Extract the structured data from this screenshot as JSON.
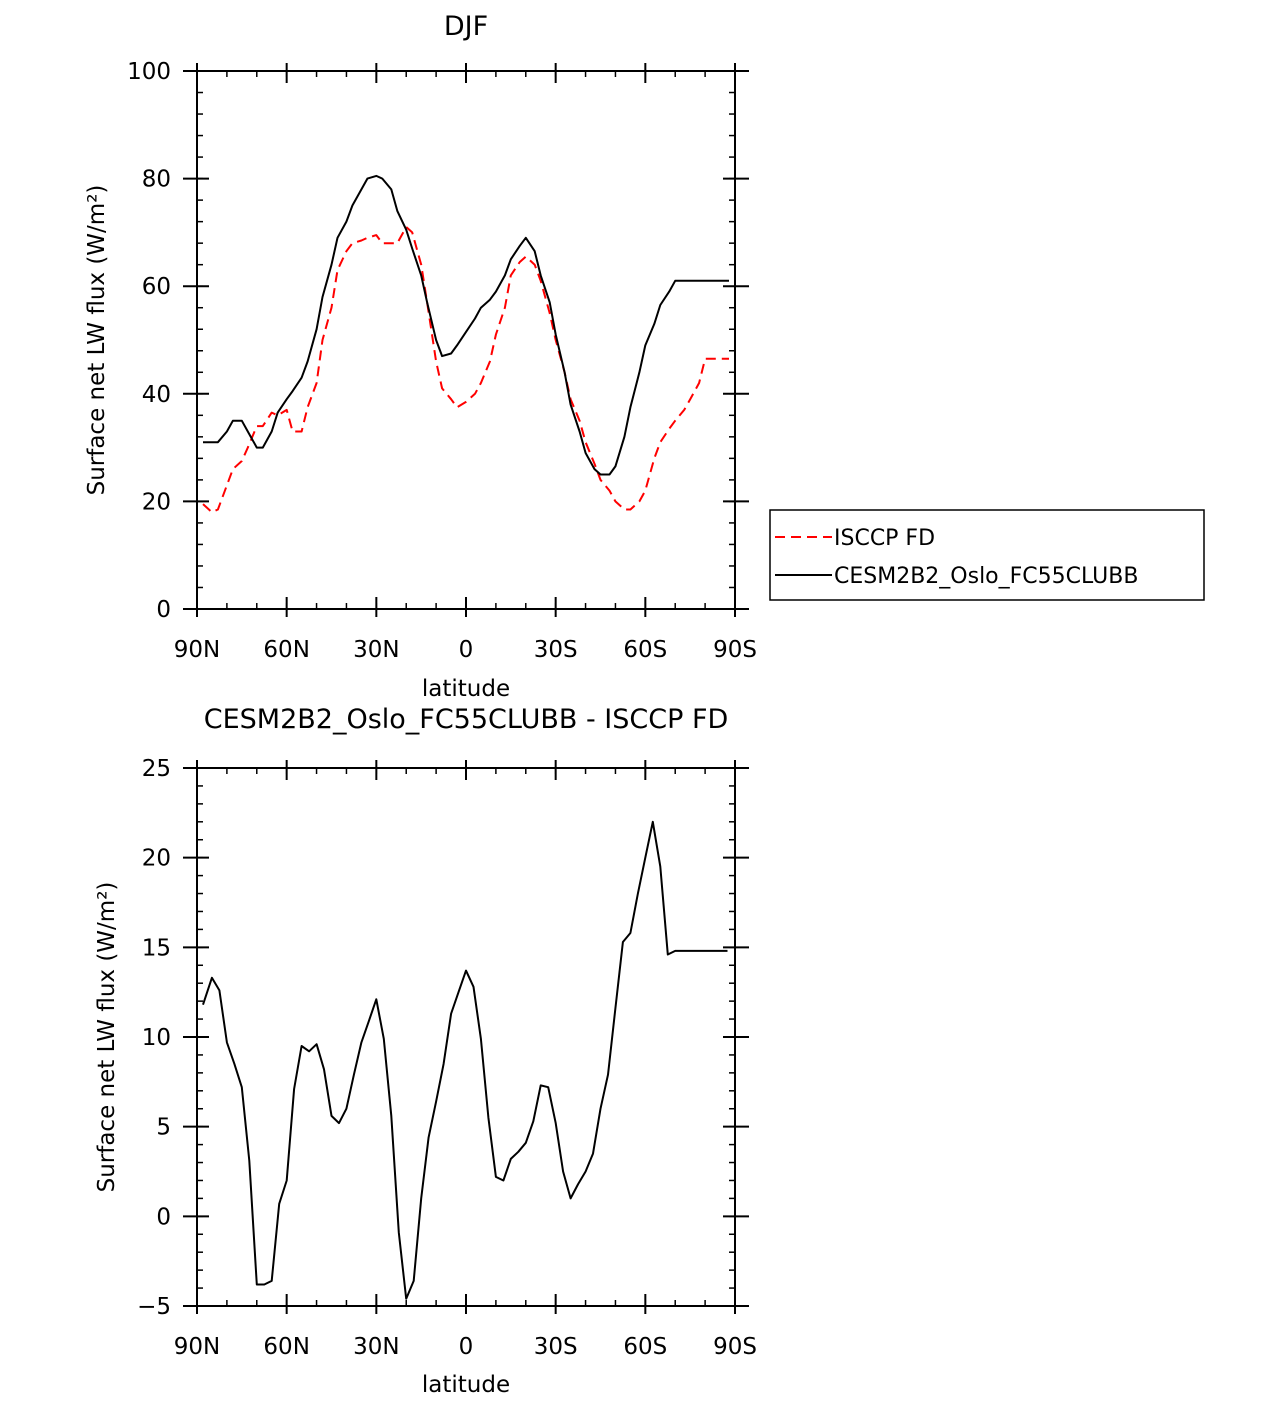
{
  "chart_data": [
    {
      "type": "line",
      "title": "DJF",
      "xlabel": "latitude",
      "ylabel": "Surface net LW flux (W/m²)",
      "xlim": [
        90,
        -90
      ],
      "ylim": [
        0,
        100
      ],
      "xticks": [
        90,
        60,
        30,
        0,
        -30,
        -60,
        -90
      ],
      "xtick_labels": [
        "90N",
        "60N",
        "30N",
        "0",
        "30S",
        "60S",
        "90S"
      ],
      "yticks": [
        0,
        20,
        40,
        60,
        80,
        100
      ],
      "ytick_labels": [
        "0",
        "20",
        "40",
        "60",
        "80",
        "100"
      ],
      "legend": {
        "placement": "right",
        "entries": [
          "ISCCP FD",
          "CESM2B2_Oslo_FC55CLUBB"
        ]
      },
      "series": [
        {
          "name": "ISCCP FD",
          "color": "#ff0000",
          "dash": "dashed",
          "x": [
            88,
            85,
            83,
            80,
            78,
            75,
            73,
            70,
            68,
            65,
            63,
            60,
            58,
            55,
            53,
            50,
            48,
            45,
            43,
            40,
            38,
            35,
            33,
            30,
            28,
            25,
            23,
            20,
            18,
            15,
            13,
            10,
            8,
            5,
            3,
            0,
            -3,
            -5,
            -8,
            -10,
            -13,
            -15,
            -18,
            -20,
            -23,
            -25,
            -28,
            -30,
            -33,
            -35,
            -38,
            -40,
            -43,
            -45,
            -48,
            -50,
            -53,
            -55,
            -58,
            -60,
            -63,
            -65,
            -68,
            -70,
            -73,
            -75,
            -78,
            -80,
            -83,
            -85,
            -88
          ],
          "values": [
            19.5,
            18,
            18.5,
            23,
            26,
            27.5,
            30,
            34,
            34,
            36.5,
            36,
            37,
            33,
            33,
            37.5,
            42,
            50,
            56,
            63,
            66.5,
            68,
            68.5,
            69,
            69.5,
            68,
            68,
            68,
            71,
            70,
            64,
            57,
            46,
            41,
            39,
            37.5,
            38.5,
            40,
            42,
            46,
            51,
            56,
            62,
            64.5,
            65.5,
            64,
            61,
            55,
            50,
            44,
            39,
            35,
            31,
            27,
            24,
            22,
            20,
            18.5,
            18.5,
            20,
            22,
            28,
            31,
            33.5,
            35,
            37,
            39,
            42,
            46.5,
            46.5,
            46.5,
            46.5
          ]
        },
        {
          "name": "CESM2B2_Oslo_FC55CLUBB",
          "color": "#000000",
          "dash": "solid",
          "x": [
            88,
            85,
            83,
            80,
            78,
            75,
            73,
            70,
            68,
            65,
            63,
            60,
            58,
            55,
            53,
            50,
            48,
            45,
            43,
            40,
            38,
            35,
            33,
            30,
            28,
            25,
            23,
            20,
            18,
            15,
            13,
            10,
            8,
            5,
            3,
            0,
            -3,
            -5,
            -8,
            -10,
            -13,
            -15,
            -18,
            -20,
            -23,
            -25,
            -28,
            -30,
            -33,
            -35,
            -38,
            -40,
            -43,
            -45,
            -48,
            -50,
            -53,
            -55,
            -58,
            -60,
            -63,
            -65,
            -68,
            -70,
            -73,
            -75,
            -78,
            -80,
            -83,
            -85,
            -88
          ],
          "values": [
            31,
            31,
            31,
            33,
            35,
            35,
            33,
            30,
            30,
            33,
            36.5,
            39,
            40.5,
            43,
            46,
            52,
            58,
            64,
            69,
            72,
            75,
            78,
            80,
            80.5,
            80,
            78,
            74,
            70.5,
            67,
            62,
            57,
            50,
            47,
            47.5,
            49,
            51.5,
            54,
            56,
            57.5,
            59,
            62,
            65,
            67.5,
            69,
            66.5,
            62,
            57,
            51,
            44,
            38,
            33,
            29,
            26,
            25,
            25,
            26.5,
            32,
            37.5,
            44,
            49,
            53,
            56.5,
            59,
            61,
            61,
            61,
            61,
            61,
            61,
            61,
            61
          ]
        }
      ]
    },
    {
      "type": "line",
      "title": "CESM2B2_Oslo_FC55CLUBB - ISCCP FD",
      "xlabel": "latitude",
      "ylabel": "Surface net LW flux (W/m²)",
      "xlim": [
        90,
        -90
      ],
      "ylim": [
        -5,
        25
      ],
      "xticks": [
        90,
        60,
        30,
        0,
        -30,
        -60,
        -90
      ],
      "xtick_labels": [
        "90N",
        "60N",
        "30N",
        "0",
        "30S",
        "60S",
        "90S"
      ],
      "yticks": [
        -5,
        0,
        5,
        10,
        15,
        20,
        25
      ],
      "ytick_labels": [
        "−5",
        "0",
        "5",
        "10",
        "15",
        "20",
        "25"
      ],
      "series": [
        {
          "color": "#000000",
          "dash": "solid",
          "x": [
            88,
            85,
            82.5,
            80,
            77.5,
            75,
            72.5,
            70,
            67.5,
            65,
            62.5,
            60,
            57.5,
            55,
            52.5,
            50,
            47.5,
            45,
            42.5,
            40,
            37.5,
            35,
            32.5,
            30,
            27.5,
            25,
            22.5,
            20,
            17.5,
            15,
            12.5,
            10,
            7.5,
            5,
            2.5,
            0,
            -2.5,
            -5,
            -7.5,
            -10,
            -12.5,
            -15,
            -17.5,
            -20,
            -22.5,
            -25,
            -27.5,
            -30,
            -32.5,
            -35,
            -37.5,
            -40,
            -42.5,
            -45,
            -47.5,
            -50,
            -52.5,
            -55,
            -57.5,
            -60,
            -62.5,
            -65,
            -67.5,
            -70,
            -72.5,
            -75,
            -77.5,
            -80,
            -82.5,
            -85,
            -87.5
          ],
          "values": [
            11.8,
            13.3,
            12.6,
            9.7,
            8.5,
            7.2,
            3.1,
            -3.8,
            -3.8,
            -3.6,
            0.7,
            2,
            7.1,
            9.5,
            9.2,
            9.6,
            8.2,
            5.6,
            5.2,
            6,
            7.9,
            9.7,
            10.9,
            12.1,
            9.9,
            5.6,
            -0.9,
            -4.6,
            -3.6,
            1,
            4.4,
            6.4,
            8.5,
            11.3,
            12.5,
            13.7,
            12.8,
            9.9,
            5.5,
            2.2,
            2,
            3.2,
            3.6,
            4.1,
            5.3,
            7.3,
            7.2,
            5.2,
            2.5,
            1,
            1.8,
            2.5,
            3.5,
            6,
            7.9,
            11.6,
            15.3,
            15.8,
            18,
            20,
            22,
            19.5,
            14.6,
            14.8,
            14.8,
            14.8,
            14.8,
            14.8,
            14.8,
            14.8,
            14.8
          ]
        }
      ]
    }
  ]
}
